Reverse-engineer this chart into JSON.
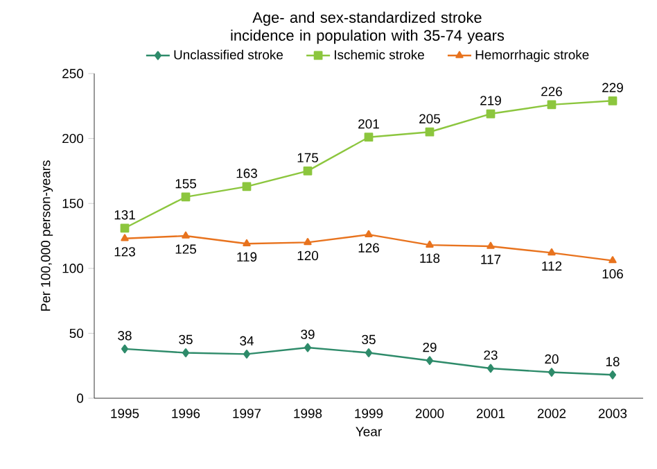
{
  "chart_data": {
    "type": "line",
    "title": "Age- and sex-standardized stroke incidence in population with 35-74 years",
    "xlabel": "Year",
    "ylabel": "Per 100,000 person-years",
    "categories": [
      "1995",
      "1996",
      "1997",
      "1998",
      "1999",
      "2000",
      "2001",
      "2002",
      "2003"
    ],
    "series": [
      {
        "name": "Unclassified stroke",
        "color": "#2e8b6a",
        "marker": "diamond",
        "values": [
          38,
          35,
          34,
          39,
          35,
          29,
          23,
          20,
          18
        ]
      },
      {
        "name": "Ischemic stroke",
        "color": "#8cc63e",
        "marker": "square",
        "values": [
          131,
          155,
          163,
          175,
          201,
          205,
          219,
          226,
          229
        ]
      },
      {
        "name": "Hemorrhagic stroke",
        "color": "#e8731e",
        "marker": "triangle",
        "values": [
          123,
          125,
          119,
          120,
          126,
          118,
          117,
          112,
          106
        ]
      }
    ],
    "ylim": [
      0,
      250
    ],
    "yticks": [
      0,
      50,
      100,
      150,
      200,
      250
    ],
    "data_labels": true,
    "legend": "top",
    "grid": false,
    "line_style": "solid"
  }
}
